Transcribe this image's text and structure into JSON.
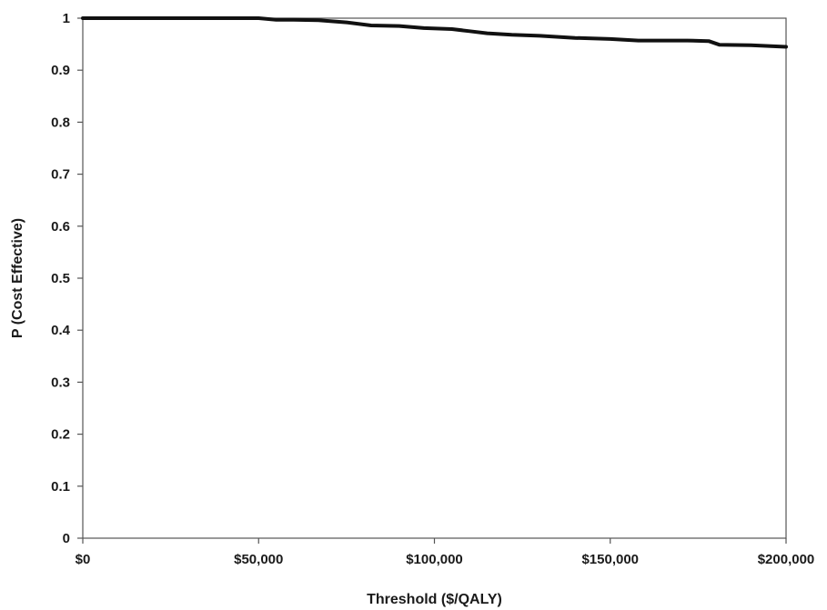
{
  "chart_data": {
    "type": "line",
    "title": "",
    "xlabel": "Threshold ($/QALY)",
    "ylabel": "P (Cost Effective)",
    "xlim": [
      0,
      200000
    ],
    "ylim": [
      0,
      1
    ],
    "grid": false,
    "legend": "none",
    "x_ticks": [
      0,
      50000,
      100000,
      150000,
      200000
    ],
    "x_tick_labels": [
      "$0",
      "$50,000",
      "$100,000",
      "$150,000",
      "$200,000"
    ],
    "y_ticks": [
      0,
      0.1,
      0.2,
      0.3,
      0.4,
      0.5,
      0.6,
      0.7,
      0.8,
      0.9,
      1
    ],
    "y_tick_labels": [
      "0",
      "0.1",
      "0.2",
      "0.3",
      "0.4",
      "0.5",
      "0.6",
      "0.7",
      "0.8",
      "0.9",
      "1"
    ],
    "line_color": "#111111",
    "series": [
      {
        "x": [
          0,
          10000,
          20000,
          30000,
          40000,
          50000,
          55000,
          60000,
          67000,
          75000,
          82000,
          90000,
          97000,
          105000,
          110000,
          115000,
          122000,
          130000,
          140000,
          150000,
          158000,
          165000,
          172000,
          178000,
          181000,
          190000,
          200000
        ],
        "values": [
          1.0,
          1.0,
          1.0,
          1.0,
          1.0,
          1.0,
          0.997,
          0.997,
          0.996,
          0.992,
          0.986,
          0.985,
          0.981,
          0.979,
          0.975,
          0.971,
          0.968,
          0.966,
          0.962,
          0.96,
          0.957,
          0.957,
          0.957,
          0.956,
          0.949,
          0.948,
          0.945
        ]
      }
    ]
  }
}
